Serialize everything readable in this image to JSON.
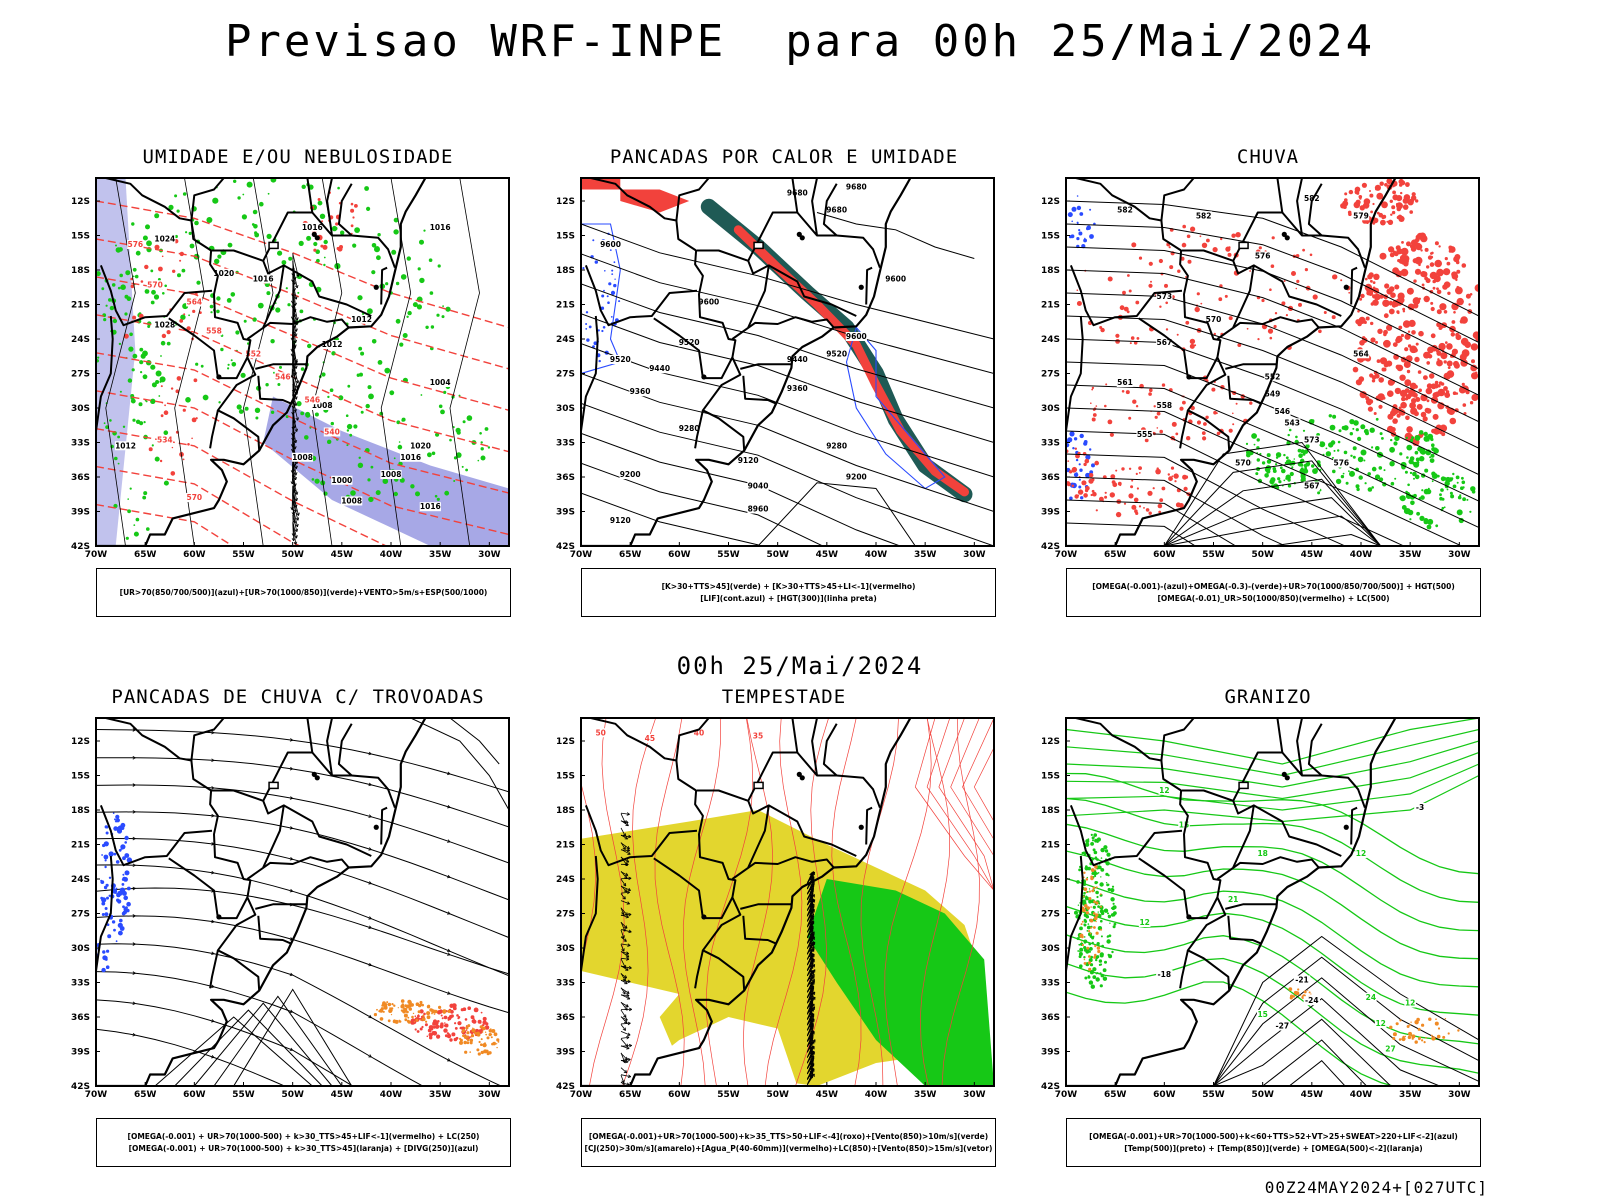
{
  "header": {
    "title": "Previsao WRF-INPE  para 00h 25/Mai/2024"
  },
  "middle": {
    "title": "00h 25/Mai/2024"
  },
  "footer": {
    "run": "00Z24MAY2024+[027UTC]"
  },
  "axes": {
    "lat_labels": [
      "12S",
      "15S",
      "18S",
      "21S",
      "24S",
      "27S",
      "30S",
      "33S",
      "36S",
      "39S",
      "42S"
    ],
    "lon_labels": [
      "70W",
      "65W",
      "60W",
      "55W",
      "50W",
      "45W",
      "40W",
      "35W",
      "30W"
    ],
    "lat_range": [
      -42,
      -10
    ],
    "lon_range": [
      -70,
      -28
    ]
  },
  "colors": {
    "blue": "#2a4bff",
    "green": "#16c816",
    "red": "#f2423c",
    "darkteal": "#1f5a55",
    "orange": "#f08a24",
    "yellow": "#e3d62e",
    "lavender": "#a7a8e6",
    "contour": "#000000"
  },
  "chart_data": [
    {
      "type": "heatmap",
      "title": "UMIDADE E/OU NEBULOSIDADE",
      "legend": [
        "[UR>70(850/700/500)](azul)+[UR>70(1000/850)](verde)+VENTO>5m/s+ESP(500/1000)"
      ],
      "contour_labels": [
        "1016",
        "1016",
        "1024",
        "1020",
        "1016",
        "1012",
        "1012",
        "1008",
        "1004",
        "1020",
        "1028",
        "1012",
        "1008",
        "1000",
        "1008",
        "1008",
        "1016",
        "1016",
        "576",
        "570",
        "564",
        "558",
        "552",
        "546",
        "546",
        "540",
        "534",
        "570"
      ]
    },
    {
      "type": "heatmap",
      "title": "PANCADAS POR CALOR E UMIDADE",
      "legend": [
        "[K>30+TTS>45](verde) + [K>30+TTS>45+LI<-1](vermelho)",
        "[LIF](cont.azul) + [HGT(300)](linha preta)"
      ],
      "contour_labels": [
        "9680",
        "9680",
        "9680",
        "9600",
        "9600",
        "9600",
        "9520",
        "9520",
        "9520",
        "9440",
        "9440",
        "9360",
        "9360",
        "9280",
        "9280",
        "9200",
        "9200",
        "9120",
        "9120",
        "9040",
        "8960",
        "9600"
      ]
    },
    {
      "type": "heatmap",
      "title": "CHUVA",
      "legend": [
        "[OMEGA(-0.001)-(azul)+OMEGA(-0.3)-(verde)+UR>70(1000/850/700/500)] + HGT(500)",
        "[OMEGA(-0.01)_UR>50(1000/850)(vermelho) + LC(500)"
      ],
      "contour_labels": [
        "582",
        "582",
        "582",
        "579",
        "576",
        "573",
        "570",
        "567",
        "564",
        "561",
        "558",
        "555",
        "552",
        "549",
        "546",
        "543",
        "570",
        "567",
        "573",
        "576"
      ]
    },
    {
      "type": "heatmap",
      "title": "PANCADAS DE CHUVA C/ TROVOADAS",
      "legend": [
        "[OMEGA(-0.001) + UR>70(1000-500) + k>30_TTS>45+LIF<-1](vermelho) + LC(250)",
        "[OMEGA(-0.001) + UR>70(1000-500) + k>30_TTS>45](laranja) + [DIVG(250)](azul)"
      ],
      "contour_labels": []
    },
    {
      "type": "heatmap",
      "title": "TEMPESTADE",
      "legend": [
        "[OMEGA(-0.001)+UR>70(1000-500)+k>35_TTS>50+LIF<-4](roxo)+[Vento(850)>10m/s](verde)",
        "[CJ(250)>30m/s](amarelo)+[Agua_P(40-60mm)](vermelho)+LC(850)+[Vento(850)>15m/s](vetor)"
      ],
      "contour_labels": [
        "50",
        "45",
        "40",
        "35"
      ]
    },
    {
      "type": "heatmap",
      "title": "GRANIZO",
      "legend": [
        "[OMEGA(-0.001)+UR>70(1000-500)+k<60+TTS>52+VT>25+SWEAT>220+LIF<-2](azul)",
        "[Temp(500)](preto) + [Temp(850)](verde) + [OMEGA(500)<-2](laranja)"
      ],
      "contour_labels": [
        "12",
        "15",
        "18",
        "21",
        "24",
        "27",
        "-18",
        "-21",
        "-24",
        "-27",
        "-3",
        "12",
        "15",
        "12",
        "12",
        "12"
      ]
    }
  ]
}
